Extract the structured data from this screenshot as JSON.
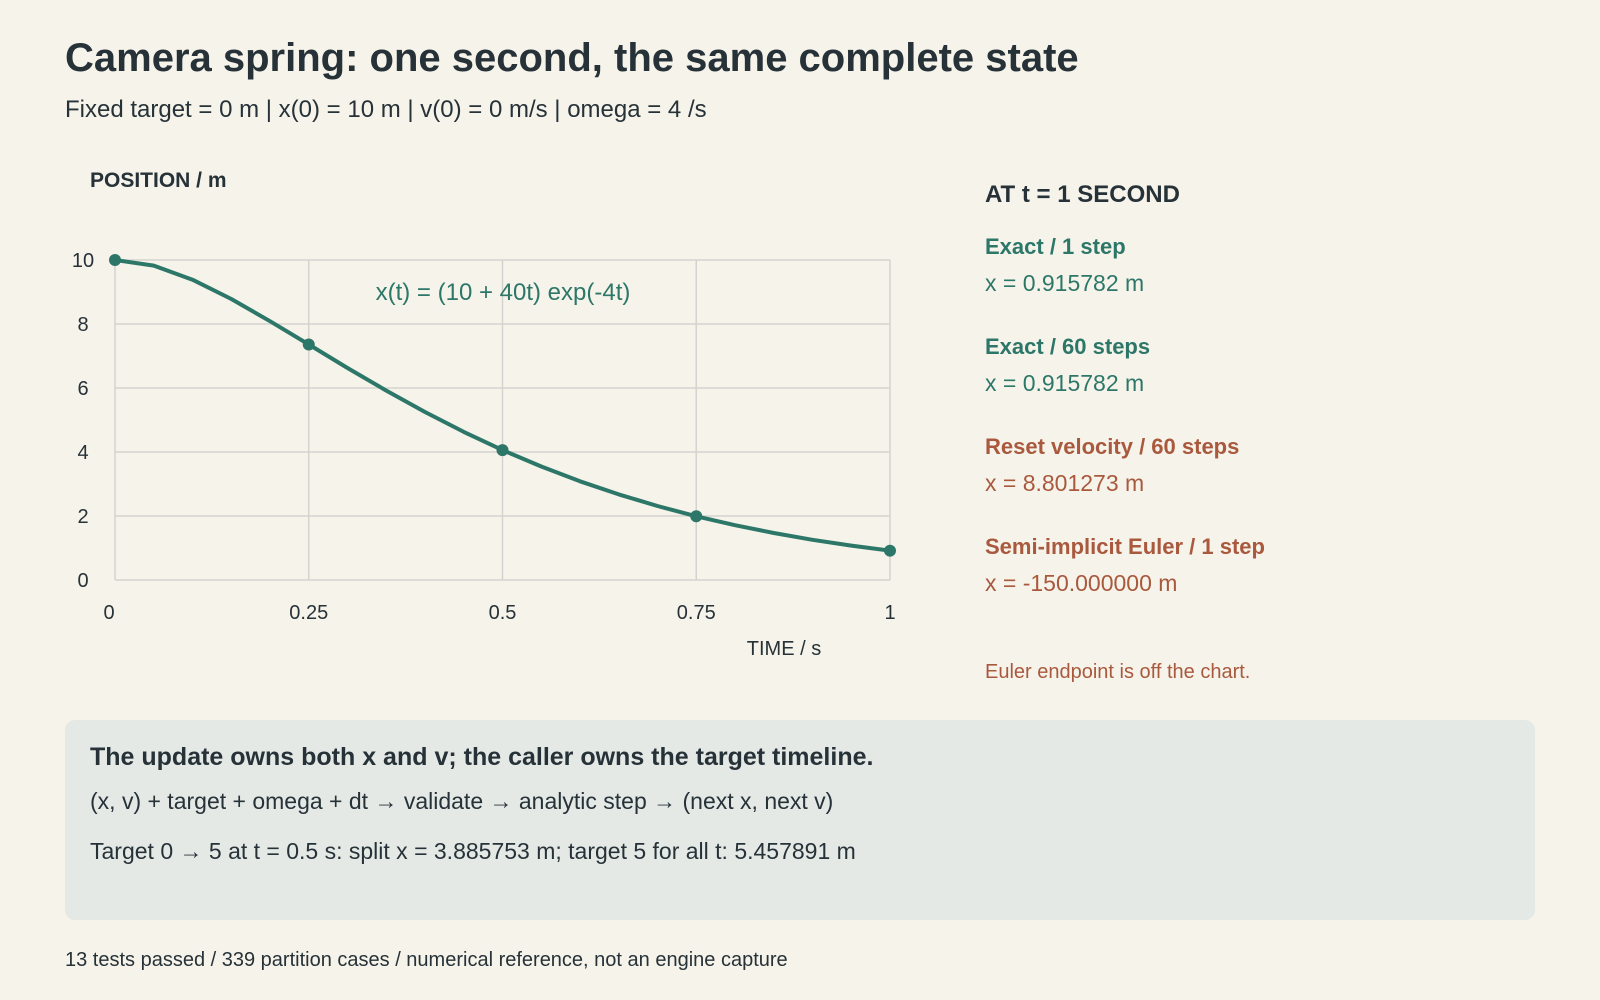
{
  "header": {
    "title": "Camera spring: one second, the same complete state",
    "subtitle": "Fixed target = 0 m | x(0) = 10 m | v(0) = 0 m/s | omega = 4 /s"
  },
  "chart_data": {
    "type": "line",
    "title": "",
    "ylabel": "POSITION / m",
    "xlabel": "TIME / s",
    "xlim": [
      0,
      1
    ],
    "ylim": [
      0,
      10
    ],
    "xticks": [
      0,
      0.25,
      0.5,
      0.75,
      1
    ],
    "xtick_labels": [
      "0",
      "0.25",
      "0.5",
      "0.75",
      "1"
    ],
    "yticks": [
      0,
      2,
      4,
      6,
      8,
      10
    ],
    "ytick_labels": [
      "0",
      "2",
      "4",
      "6",
      "8",
      "10"
    ],
    "grid": true,
    "annotation": "x(t) = (10 + 40t) exp(-4t)",
    "series": [
      {
        "color": "#2d7769",
        "x": [
          0,
          0.05,
          0.1,
          0.15,
          0.2,
          0.25,
          0.3,
          0.35,
          0.4,
          0.45,
          0.5,
          0.55,
          0.6,
          0.65,
          0.7,
          0.75,
          0.8,
          0.85,
          0.9,
          0.95,
          1
        ],
        "values": [
          10,
          9.825,
          9.384,
          8.781,
          8.088,
          7.358,
          6.626,
          5.918,
          5.249,
          4.628,
          4.06,
          3.546,
          3.085,
          2.674,
          2.311,
          1.991,
          1.712,
          1.469,
          1.257,
          1.075,
          0.916
        ]
      }
    ],
    "markers": {
      "x": [
        0,
        0.25,
        0.5,
        0.75,
        1
      ],
      "values": [
        10,
        7.358,
        4.06,
        1.991,
        0.916
      ]
    }
  },
  "results": {
    "heading": "AT t = 1 SECOND",
    "items": [
      {
        "label": "Exact / 1 step",
        "value": "x = 0.915782 m",
        "tone": "green"
      },
      {
        "label": "Exact / 60 steps",
        "value": "x = 0.915782 m",
        "tone": "green"
      },
      {
        "label": "Reset velocity / 60 steps",
        "value": "x = 8.801273 m",
        "tone": "orange"
      },
      {
        "label": "Semi-implicit Euler / 1 step",
        "value": "x = -150.000000 m",
        "tone": "orange"
      }
    ],
    "note": "Euler endpoint is off the chart."
  },
  "summary": {
    "heading": "The update owns both x and v; the caller owns the target timeline.",
    "flow": "(x, v) + target + omega + dt → validate → analytic step → (next x, next v)",
    "detail": "Target 0 → 5 at t = 0.5 s: split x = 3.885753 m; target 5 for all t: 5.457891 m"
  },
  "footer": "13 tests passed / 339 partition cases / numerical reference, not an engine capture",
  "colors": {
    "background": "#f6f3ea",
    "text": "#263238",
    "green": "#2d7769",
    "orange": "#a9593d",
    "grid": "#d3d3cf",
    "panel": "#e5e9e6"
  }
}
